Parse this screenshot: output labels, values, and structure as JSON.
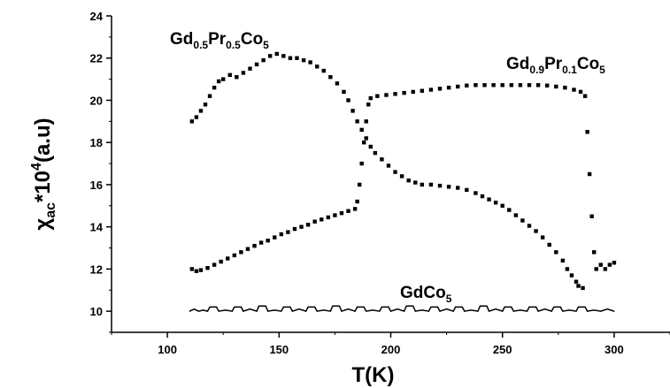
{
  "chart_data": {
    "type": "scatter",
    "title": "",
    "xlabel": "T(K)",
    "ylabel": {
      "base": "χ",
      "sub": "ac",
      "mid": "*10",
      "sup": "4",
      "tail": "(a.u)"
    },
    "xlim": [
      75,
      325
    ],
    "ylim": [
      9,
      24
    ],
    "x_ticks": [
      100,
      150,
      200,
      250,
      300
    ],
    "y_ticks": [
      10,
      12,
      14,
      16,
      18,
      20,
      22,
      24
    ],
    "grid": false,
    "legend": "none",
    "series": [
      {
        "name": "Gd0.5Pr0.5Co5",
        "label": {
          "parts": [
            [
              "Gd",
              ""
            ],
            [
              "0.5",
              "sub"
            ],
            [
              "Pr",
              ""
            ],
            [
              "0.5",
              "sub"
            ],
            [
              "Co",
              ""
            ],
            [
              "5",
              "sub"
            ]
          ]
        },
        "marker": "square",
        "points": [
          [
            111,
            19.0
          ],
          [
            113,
            19.2
          ],
          [
            115,
            19.5
          ],
          [
            117,
            19.8
          ],
          [
            119,
            20.2
          ],
          [
            121,
            20.6
          ],
          [
            123,
            20.9
          ],
          [
            125,
            21.0
          ],
          [
            128,
            21.2
          ],
          [
            131,
            21.1
          ],
          [
            134,
            21.3
          ],
          [
            137,
            21.5
          ],
          [
            140,
            21.7
          ],
          [
            143,
            21.9
          ],
          [
            146,
            22.1
          ],
          [
            149,
            22.2
          ],
          [
            152,
            22.1
          ],
          [
            155,
            22.0
          ],
          [
            158,
            22.0
          ],
          [
            161,
            21.9
          ],
          [
            164,
            21.8
          ],
          [
            167,
            21.6
          ],
          [
            170,
            21.4
          ],
          [
            173,
            21.1
          ],
          [
            176,
            20.8
          ],
          [
            179,
            20.4
          ],
          [
            181,
            20.0
          ],
          [
            183,
            19.5
          ],
          [
            185,
            19.0
          ],
          [
            187,
            18.6
          ],
          [
            189,
            18.2
          ],
          [
            191,
            17.8
          ],
          [
            193,
            17.5
          ],
          [
            196,
            17.2
          ],
          [
            199,
            16.9
          ],
          [
            202,
            16.6
          ],
          [
            205,
            16.4
          ],
          [
            208,
            16.2
          ],
          [
            211,
            16.1
          ],
          [
            214,
            16.0
          ],
          [
            218,
            16.0
          ],
          [
            222,
            15.95
          ],
          [
            226,
            15.9
          ],
          [
            230,
            15.85
          ],
          [
            234,
            15.75
          ],
          [
            238,
            15.6
          ],
          [
            241,
            15.45
          ],
          [
            244,
            15.3
          ],
          [
            247,
            15.15
          ],
          [
            250,
            15.0
          ],
          [
            253,
            14.8
          ],
          [
            256,
            14.55
          ],
          [
            259,
            14.3
          ],
          [
            262,
            14.05
          ],
          [
            265,
            13.8
          ],
          [
            268,
            13.5
          ],
          [
            271,
            13.15
          ],
          [
            274,
            12.8
          ],
          [
            277,
            12.4
          ],
          [
            279,
            12.0
          ],
          [
            281,
            11.7
          ],
          [
            283,
            11.4
          ],
          [
            284,
            11.2
          ],
          [
            286,
            11.1
          ]
        ]
      },
      {
        "name": "Gd0.9Pr0.1Co5",
        "label": {
          "parts": [
            [
              "Gd",
              ""
            ],
            [
              "0.9",
              "sub"
            ],
            [
              "Pr",
              ""
            ],
            [
              "0.1",
              "sub"
            ],
            [
              "Co",
              ""
            ],
            [
              "5",
              "sub"
            ]
          ]
        },
        "marker": "square",
        "points": [
          [
            111,
            12.0
          ],
          [
            113,
            11.9
          ],
          [
            115,
            11.95
          ],
          [
            118,
            12.05
          ],
          [
            121,
            12.2
          ],
          [
            124,
            12.35
          ],
          [
            127,
            12.5
          ],
          [
            130,
            12.65
          ],
          [
            133,
            12.8
          ],
          [
            136,
            12.95
          ],
          [
            139,
            13.1
          ],
          [
            142,
            13.25
          ],
          [
            145,
            13.35
          ],
          [
            148,
            13.5
          ],
          [
            151,
            13.65
          ],
          [
            154,
            13.75
          ],
          [
            157,
            13.9
          ],
          [
            160,
            14.0
          ],
          [
            163,
            14.1
          ],
          [
            166,
            14.25
          ],
          [
            169,
            14.35
          ],
          [
            172,
            14.45
          ],
          [
            175,
            14.55
          ],
          [
            178,
            14.65
          ],
          [
            181,
            14.75
          ],
          [
            184,
            14.85
          ],
          [
            185,
            15.2
          ],
          [
            186,
            16.0
          ],
          [
            187,
            17.0
          ],
          [
            188,
            18.0
          ],
          [
            189,
            19.0
          ],
          [
            190,
            19.8
          ],
          [
            191,
            20.1
          ],
          [
            194,
            20.2
          ],
          [
            198,
            20.25
          ],
          [
            202,
            20.3
          ],
          [
            206,
            20.35
          ],
          [
            210,
            20.4
          ],
          [
            214,
            20.45
          ],
          [
            218,
            20.5
          ],
          [
            222,
            20.55
          ],
          [
            226,
            20.6
          ],
          [
            230,
            20.65
          ],
          [
            234,
            20.7
          ],
          [
            238,
            20.72
          ],
          [
            242,
            20.72
          ],
          [
            246,
            20.72
          ],
          [
            250,
            20.72
          ],
          [
            254,
            20.72
          ],
          [
            258,
            20.72
          ],
          [
            262,
            20.72
          ],
          [
            266,
            20.72
          ],
          [
            270,
            20.7
          ],
          [
            274,
            20.65
          ],
          [
            278,
            20.6
          ],
          [
            282,
            20.5
          ],
          [
            285,
            20.4
          ],
          [
            287,
            20.2
          ],
          [
            288,
            18.5
          ],
          [
            289,
            16.5
          ],
          [
            290,
            14.5
          ],
          [
            291,
            12.8
          ],
          [
            292,
            12.0
          ],
          [
            294,
            12.2
          ],
          [
            296,
            12.0
          ],
          [
            298,
            12.2
          ],
          [
            300,
            12.3
          ]
        ]
      },
      {
        "name": "GdCo5",
        "label": {
          "parts": [
            [
              "GdCo",
              ""
            ],
            [
              "5",
              "sub"
            ]
          ]
        },
        "marker": "line",
        "points": [
          [
            110,
            10.0
          ],
          [
            112,
            10.1
          ],
          [
            114,
            10.0
          ],
          [
            116,
            10.05
          ],
          [
            118,
            10.0
          ],
          [
            119,
            10.2
          ],
          [
            122,
            10.2
          ],
          [
            123,
            10.0
          ],
          [
            126,
            10.05
          ],
          [
            129,
            10.0
          ],
          [
            130,
            10.2
          ],
          [
            133,
            10.2
          ],
          [
            134,
            10.0
          ],
          [
            137,
            10.1
          ],
          [
            140,
            10.0
          ],
          [
            141,
            10.25
          ],
          [
            144,
            10.25
          ],
          [
            145,
            10.0
          ],
          [
            148,
            10.05
          ],
          [
            151,
            10.0
          ],
          [
            152,
            10.2
          ],
          [
            155,
            10.2
          ],
          [
            156,
            10.0
          ],
          [
            159,
            10.1
          ],
          [
            162,
            10.0
          ],
          [
            163,
            10.2
          ],
          [
            166,
            10.2
          ],
          [
            167,
            10.0
          ],
          [
            170,
            10.05
          ],
          [
            173,
            10.0
          ],
          [
            174,
            10.25
          ],
          [
            177,
            10.25
          ],
          [
            178,
            10.0
          ],
          [
            181,
            10.1
          ],
          [
            184,
            10.0
          ],
          [
            185,
            10.2
          ],
          [
            188,
            10.2
          ],
          [
            189,
            10.0
          ],
          [
            192,
            10.05
          ],
          [
            195,
            10.0
          ],
          [
            196,
            10.2
          ],
          [
            199,
            10.2
          ],
          [
            200,
            10.0
          ],
          [
            203,
            10.1
          ],
          [
            206,
            10.0
          ],
          [
            207,
            10.25
          ],
          [
            210,
            10.25
          ],
          [
            211,
            10.0
          ],
          [
            214,
            10.05
          ],
          [
            217,
            10.0
          ],
          [
            218,
            10.2
          ],
          [
            221,
            10.2
          ],
          [
            222,
            10.0
          ],
          [
            225,
            10.1
          ],
          [
            228,
            10.0
          ],
          [
            229,
            10.2
          ],
          [
            232,
            10.2
          ],
          [
            233,
            10.0
          ],
          [
            236,
            10.05
          ],
          [
            239,
            10.0
          ],
          [
            240,
            10.25
          ],
          [
            243,
            10.25
          ],
          [
            244,
            10.0
          ],
          [
            247,
            10.1
          ],
          [
            250,
            10.0
          ],
          [
            251,
            10.2
          ],
          [
            254,
            10.2
          ],
          [
            255,
            10.0
          ],
          [
            258,
            10.05
          ],
          [
            261,
            10.0
          ],
          [
            262,
            10.2
          ],
          [
            265,
            10.2
          ],
          [
            266,
            10.0
          ],
          [
            269,
            10.1
          ],
          [
            272,
            10.0
          ],
          [
            273,
            10.2
          ],
          [
            276,
            10.2
          ],
          [
            277,
            10.0
          ],
          [
            280,
            10.05
          ],
          [
            283,
            10.0
          ],
          [
            284,
            10.2
          ],
          [
            287,
            10.2
          ],
          [
            288,
            10.0
          ],
          [
            291,
            10.05
          ],
          [
            294,
            10.0
          ],
          [
            297,
            10.1
          ],
          [
            300,
            10.0
          ]
        ]
      }
    ],
    "colors": {
      "marker": "#000000",
      "axis": "#000000",
      "background": "#ffffff"
    }
  }
}
